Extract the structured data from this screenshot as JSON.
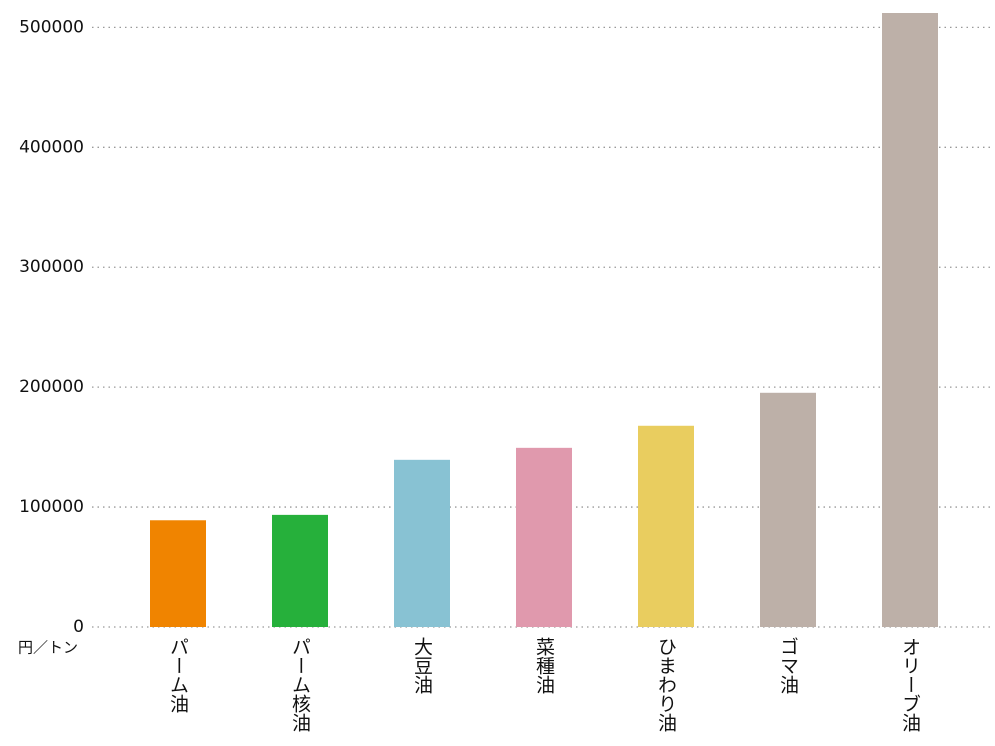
{
  "chart_data": {
    "type": "bar",
    "unit_label": "円／トン",
    "categories": [
      "パーム油",
      "パーム核油",
      "大豆油",
      "菜種油",
      "ひまわり油",
      "ゴマ油",
      "オリーブ油"
    ],
    "values": [
      89000,
      93500,
      139400,
      149400,
      167800,
      195300,
      512000
    ],
    "colors": [
      "#f08400",
      "#26b03b",
      "#88c2d3",
      "#e099ad",
      "#e9cd5f",
      "#bdb0a8",
      "#bdb0a8"
    ],
    "ylim": [
      0,
      512000
    ],
    "yticks": [
      0,
      100000,
      200000,
      300000,
      400000,
      500000
    ],
    "grid": true
  }
}
